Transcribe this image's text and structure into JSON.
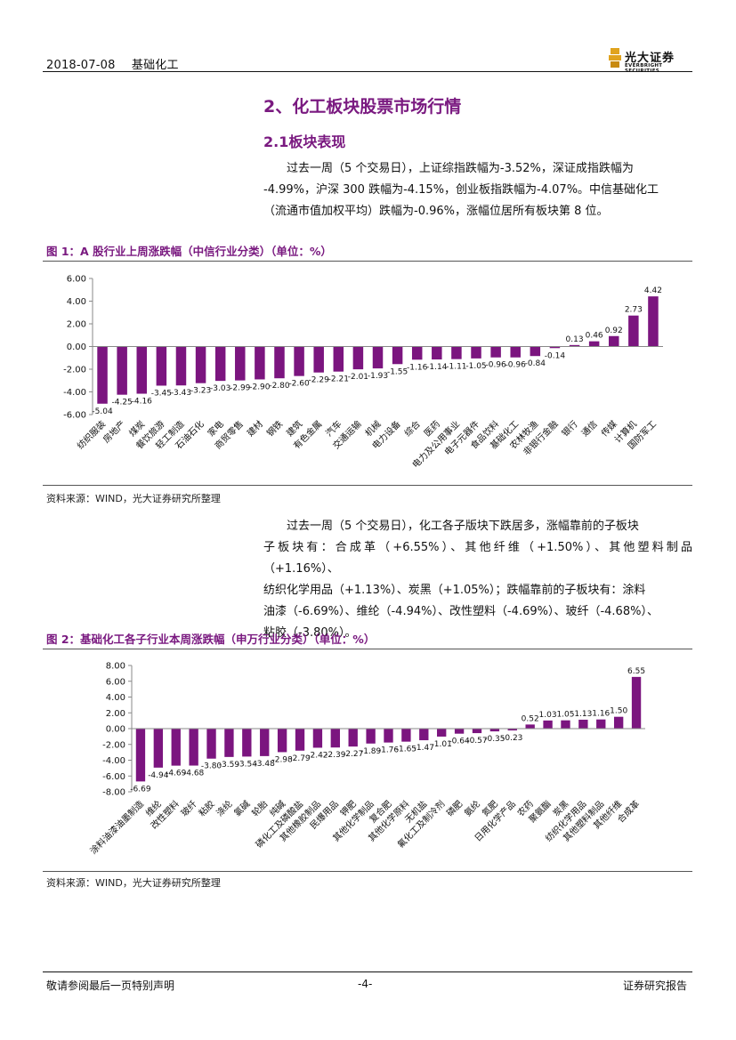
{
  "header": {
    "date": "2018-07-08",
    "sector": "基础化工",
    "logo_cn": "光大证券",
    "logo_en": "EVERBRIGHT SECURITIES"
  },
  "section": {
    "title": "2、化工板块股票市场行情",
    "subtitle": "2.1板块表现"
  },
  "paragraph1": {
    "lines": [
      "过去一周（5 个交易日），上证综指跌幅为-3.52%，深证成指跌幅为",
      "-4.99%，沪深 300 跌幅为-4.15%，创业板指跌幅为-4.07%。中信基础化工",
      "（流通市值加权平均）跌幅为-0.96%，涨幅位居所有板块第 8 位。"
    ]
  },
  "figure1": {
    "title": "图 1：A 股行业上周涨跌幅（中信行业分类）（单位：%）",
    "source": "资料来源：WIND，光大证券研究所整理"
  },
  "paragraph2": {
    "lines": [
      "过去一周（5 个交易日），化工各子版块下跌居多，涨幅靠前的子板块",
      "子板块有：合成革（+6.55%）、其他纤维（+1.50%）、其他塑料制品（+1.16%）、",
      "纺织化学用品（+1.13%）、炭黑（+1.05%）；跌幅靠前的子板块有：涂料",
      "油漆（-6.69%）、维纶（-4.94%）、改性塑料（-4.69%）、玻纤（-4.68%）、",
      "粘胶（-3.80%）。"
    ]
  },
  "figure2": {
    "title": "图 2：基础化工各子行业本周涨跌幅（申万行业分类）（单位：%）",
    "source": "资料来源：WIND，光大证券研究所整理"
  },
  "footer": {
    "left": "敬请参阅最后一页特别声明",
    "page": "-4-",
    "right": "证券研究报告"
  },
  "colors": {
    "accent": "#7a1a80",
    "bar": "#7b157f"
  },
  "chart_data": [
    {
      "type": "bar",
      "title": "图 1：A 股行业上周涨跌幅（中信行业分类）（单位：%）",
      "ylim": [
        -6,
        6
      ],
      "yticks": [
        "6.00",
        "4.00",
        "2.00",
        "0.00",
        "-2.00",
        "-4.00",
        "-6.00"
      ],
      "grid": false,
      "categories": [
        "纺织服装",
        "房地产",
        "煤炭",
        "餐饮旅游",
        "轻工制造",
        "石油石化",
        "家电",
        "商贸零售",
        "建材",
        "钢铁",
        "建筑",
        "有色金属",
        "汽车",
        "交通运输",
        "机械",
        "电力设备",
        "综合",
        "医药",
        "电力及公用事业",
        "电子元器件",
        "食品饮料",
        "基础化工",
        "农林牧渔",
        "非银行金融",
        "银行",
        "通信",
        "传媒",
        "计算机",
        "国防军工"
      ],
      "values": [
        -5.04,
        -4.25,
        -4.16,
        -3.45,
        -3.43,
        -3.23,
        -3.03,
        -2.99,
        -2.9,
        -2.8,
        -2.6,
        -2.29,
        -2.21,
        -2.01,
        -1.93,
        -1.55,
        -1.16,
        -1.14,
        -1.11,
        -1.05,
        -0.96,
        -0.96,
        -0.84,
        -0.14,
        0.13,
        0.46,
        0.92,
        2.73,
        4.42
      ],
      "labels": [
        "-5.04",
        "-4.25",
        "-4.16",
        "-3.45",
        "-3.43",
        "-3.23",
        "-3.03",
        "-2.99",
        "-2.90",
        "-2.80",
        "-2.60",
        "-2.29",
        "-2.21",
        "-2.01",
        "-1.93",
        "-1.55",
        "-1.16",
        "-1.14",
        "-1.11",
        "-1.05",
        "-0.96",
        "-0.96",
        "-0.84",
        "-0.14",
        "0.13",
        "0.46",
        "0.92",
        "2.73",
        "4.42"
      ]
    },
    {
      "type": "bar",
      "title": "图 2：基础化工各子行业本周涨跌幅（申万行业分类）（单位：%）",
      "ylim": [
        -8,
        8
      ],
      "yticks": [
        "8.00",
        "6.00",
        "4.00",
        "2.00",
        "0.00",
        "-2.00",
        "-4.00",
        "-6.00",
        "-8.00"
      ],
      "grid": false,
      "categories": [
        "涂料油漆油墨制造",
        "维纶",
        "改性塑料",
        "玻纤",
        "粘胶",
        "涤纶",
        "氯碱",
        "轮胎",
        "纯碱",
        "磷化工及磷酸盐",
        "其他橡胶制品",
        "民爆用品",
        "钾肥",
        "其他化学制品",
        "复合肥",
        "其他化学原料",
        "无机盐",
        "氟化工及制冷剂",
        "磷肥",
        "氨纶",
        "氮肥",
        "日用化学产品",
        "农药",
        "聚氨酯",
        "炭黑",
        "纺织化学用品",
        "其他塑料制品",
        "其他纤维",
        "合成革"
      ],
      "values": [
        -6.69,
        -4.94,
        -4.69,
        -4.68,
        -3.8,
        -3.59,
        -3.54,
        -3.48,
        -2.98,
        -2.79,
        -2.42,
        -2.39,
        -2.27,
        -1.89,
        -1.76,
        -1.65,
        -1.47,
        -1.01,
        -0.64,
        -0.57,
        -0.35,
        -0.23,
        0.52,
        1.03,
        1.05,
        1.13,
        1.16,
        1.5,
        6.55
      ],
      "labels": [
        "-6.69",
        "-4.94",
        "-4.69",
        "-4.68",
        "-3.80",
        "-3.59",
        "-3.54",
        "-3.48",
        "-2.98",
        "-2.79",
        "-2.42",
        "-2.39",
        "-2.27",
        "-1.89",
        "-1.76",
        "-1.65",
        "-1.47",
        "-1.01",
        "-0.64",
        "-0.57",
        "-0.35",
        "-0.23",
        "0.52",
        "1.03",
        "1.05",
        "1.13",
        "1.16",
        "1.50",
        "6.55"
      ]
    }
  ]
}
